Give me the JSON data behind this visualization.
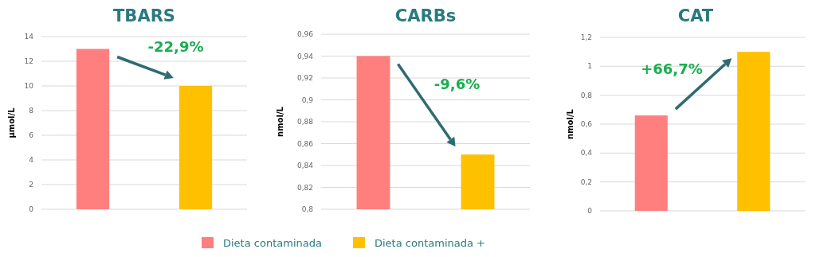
{
  "chart_data": [
    {
      "type": "bar",
      "title": "TBARS",
      "ylabel": "µmol/L",
      "categories": [
        null,
        null
      ],
      "series": [
        {
          "name": "Dieta contaminada",
          "color": "#ff7f7f",
          "values": [
            13,
            null
          ]
        },
        {
          "name": "Dieta contaminada +",
          "color": "#ffc000",
          "values": [
            null,
            10
          ]
        }
      ],
      "ylim": [
        0,
        14
      ],
      "yticks": [
        0,
        2,
        4,
        6,
        8,
        10,
        12,
        14
      ],
      "grid": "y",
      "legend": "bottom",
      "annotations": [
        "-22,9%"
      ]
    },
    {
      "type": "bar",
      "title": "CARBs",
      "ylabel": "nmol/L",
      "categories": [
        null,
        null
      ],
      "series": [
        {
          "color": "#ff7f7f",
          "values": [
            0.94,
            null
          ]
        },
        {
          "color": "#ffc000",
          "values": [
            null,
            0.85
          ]
        }
      ],
      "ylim": [
        0.8,
        0.96
      ],
      "yticks": [
        {
          "value": 0.8,
          "label": "0,8"
        },
        {
          "value": 0.82,
          "label": "0,82"
        },
        {
          "value": 0.84,
          "label": "0,84"
        },
        {
          "value": 0.86,
          "label": "0,86"
        },
        {
          "value": 0.88,
          "label": "0,88"
        },
        {
          "value": 0.9,
          "label": "0,9"
        },
        {
          "value": 0.92,
          "label": "0,92"
        },
        {
          "value": 0.94,
          "label": "0,94"
        },
        {
          "value": 0.96,
          "label": "0,96"
        }
      ],
      "grid": "y",
      "annotations": [
        "-9,6%"
      ]
    },
    {
      "type": "bar",
      "title": "CAT",
      "ylabel": "nmol/L",
      "categories": [
        null,
        null
      ],
      "series": [
        {
          "color": "#ff7f7f",
          "values": [
            0.66,
            null
          ]
        },
        {
          "color": "#ffc000",
          "values": [
            null,
            1.1
          ]
        }
      ],
      "ylim": [
        0,
        1.2
      ],
      "yticks": [
        0,
        {
          "value": 0.2,
          "label": "0,2"
        },
        {
          "value": 0.4,
          "label": "0,4"
        },
        {
          "value": 0.6,
          "label": "0,6"
        },
        {
          "value": 0.8,
          "label": "0,8"
        },
        1,
        {
          "value": 1.2,
          "label": "1,2"
        }
      ],
      "grid": "y",
      "annotations": [
        "+66,7%"
      ]
    }
  ]
}
